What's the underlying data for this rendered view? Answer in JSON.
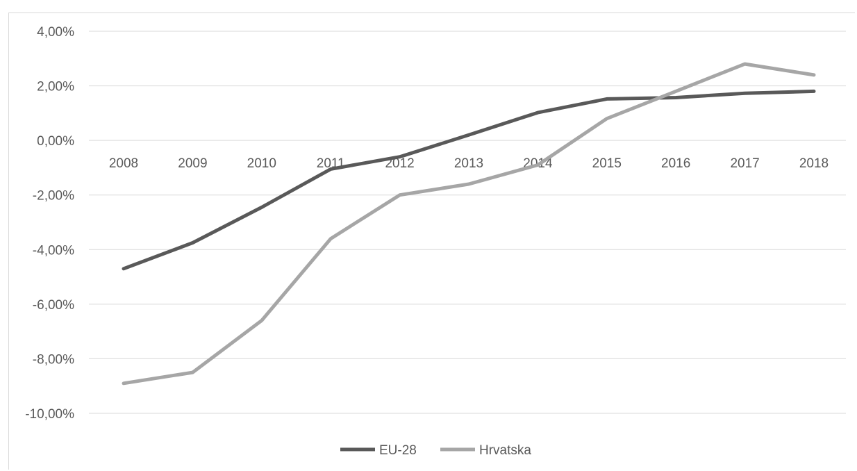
{
  "chart_data": {
    "type": "line",
    "title": "",
    "xlabel": "",
    "ylabel": "",
    "categories": [
      "2008",
      "2009",
      "2010",
      "2011",
      "2012",
      "2013",
      "2014",
      "2015",
      "2016",
      "2017",
      "2018"
    ],
    "ylim": [
      -10,
      4
    ],
    "y_ticks": [
      4,
      2,
      0,
      -2,
      -4,
      -6,
      -8,
      -10
    ],
    "y_tick_labels": [
      "4,00%",
      "2,00%",
      "0,00%",
      "-2,00%",
      "-4,00%",
      "-6,00%",
      "-8,00%",
      "-10,00%"
    ],
    "grid": true,
    "legend_position": "bottom",
    "series": [
      {
        "name": "EU-28",
        "color": "#595959",
        "values": [
          -4.7,
          -3.75,
          -2.45,
          -1.05,
          -0.6,
          0.2,
          1.02,
          1.52,
          1.57,
          1.73,
          1.8
        ]
      },
      {
        "name": "Hrvatska",
        "color": "#a6a6a6",
        "values": [
          -8.9,
          -8.5,
          -6.6,
          -3.6,
          -2.0,
          -1.6,
          -0.9,
          0.8,
          1.8,
          2.8,
          2.4
        ]
      }
    ]
  }
}
